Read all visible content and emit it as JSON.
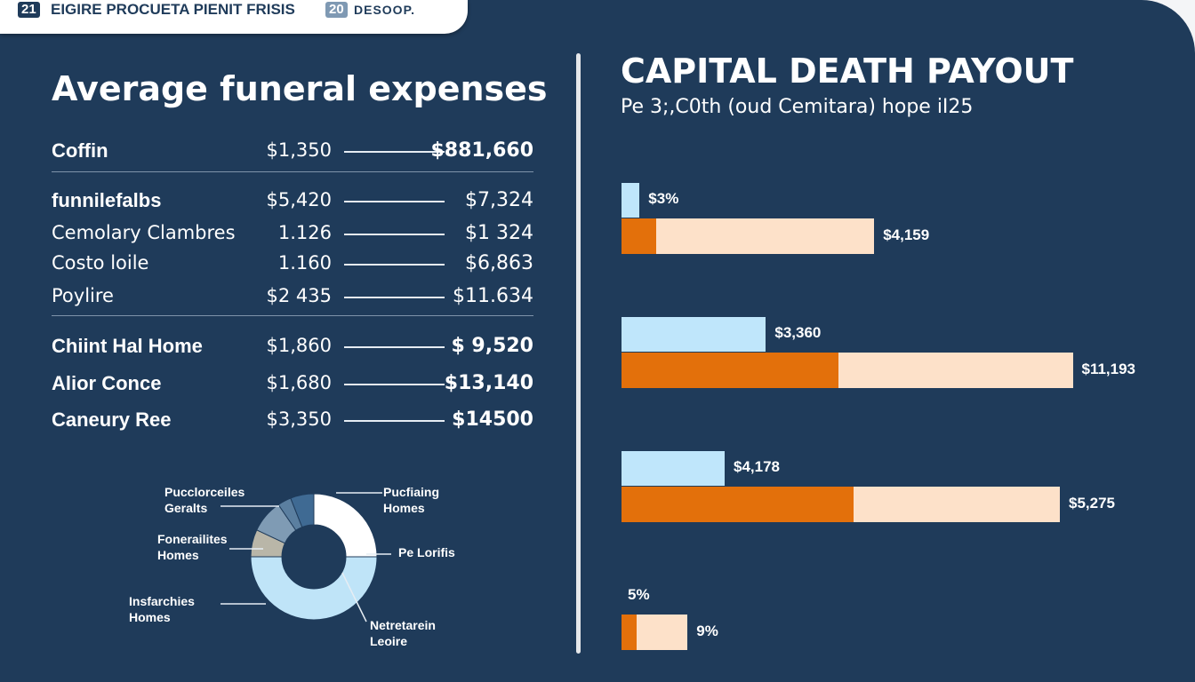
{
  "header": {
    "badge1": "21",
    "title": "EIGIRE PROCUETA PIENIT FRISIS",
    "badge2": "20",
    "tab2": "DESOOP."
  },
  "left": {
    "title": "Average funeral expenses",
    "rows": [
      {
        "label": "Coffin",
        "mid": "$1,350",
        "value": "$881,660",
        "bold": true
      },
      {
        "label": "funnilefalbs",
        "mid": "$5,420",
        "value": "$7,324",
        "bold": false,
        "labelBold": true
      },
      {
        "label": "Cemolary Clambres",
        "mid": "1.126",
        "value": "$1 324",
        "bold": false
      },
      {
        "label": "Costo loile",
        "mid": "1.160",
        "value": "$6,863",
        "bold": false
      },
      {
        "label": "Poylire",
        "mid": "$2 435",
        "value": "$11.634",
        "bold": false
      },
      {
        "label": "Chiint Hal Home",
        "mid": "$1,860",
        "value": "$ 9,520",
        "bold": true
      },
      {
        "label": "Alior Conce",
        "mid": "$1,680",
        "value": "$13,140",
        "bold": true
      },
      {
        "label": "Caneury Ree",
        "mid": "$3,350",
        "value": "$14500",
        "bold": true
      }
    ],
    "donut": {
      "labels": [
        "Pucclorceiles\nGeralts",
        "Fonerailites\nHomes",
        "Insfarchies\nHomes",
        "Pucfiaing\nHomes",
        "Pe Lorifis",
        "Netretarein\nLeoire"
      ],
      "segments": [
        {
          "fraction": 0.25,
          "color": "#ffffff"
        },
        {
          "fraction": 0.5,
          "color": "#bfe4f8"
        },
        {
          "fraction": 0.07,
          "color": "#b9b6a8"
        },
        {
          "fraction": 0.085,
          "color": "#7f9bb4"
        },
        {
          "fraction": 0.035,
          "color": "#5b7fa0"
        },
        {
          "fraction": 0.06,
          "color": "#3f6a93"
        }
      ]
    }
  },
  "right": {
    "title": "CAPITAL DEATH PAYOUT",
    "subtitle": "Pe 3;,C0th (oud Cemitara) hope iI25",
    "chart_data": {
      "type": "bar",
      "colors": {
        "blue": "#bfe6fb",
        "orange": "#e3700b",
        "peach": "#fde1c9"
      },
      "groups": [
        {
          "blue_pct": 3.5,
          "orange_pct": 6.7,
          "total_pct": 49,
          "blue_label": "$3%",
          "total_label": "$4,159"
        },
        {
          "blue_pct": 28,
          "orange_pct": 42,
          "total_pct": 87.5,
          "blue_label": "$3,360",
          "total_label": "$11,193"
        },
        {
          "blue_pct": 20,
          "orange_pct": 45,
          "total_pct": 85,
          "blue_label": "$4,178",
          "total_label": "$5,275"
        },
        {
          "blue_pct": 0,
          "orange_pct": 3,
          "total_pct": 12.8,
          "blue_label": "5%",
          "total_label": "9%"
        }
      ]
    }
  }
}
